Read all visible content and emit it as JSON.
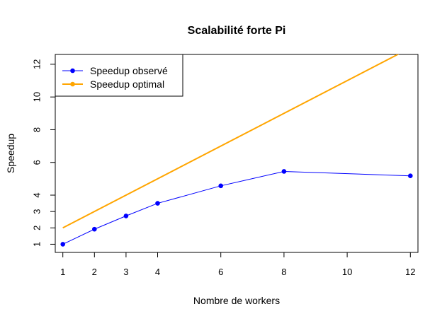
{
  "chart_data": {
    "type": "line",
    "title": "Scalabilité forte Pi",
    "xlabel": "Nombre de workers",
    "ylabel": "Speedup",
    "xlim": [
      0.76,
      12.24
    ],
    "ylim": [
      0.5,
      12.6
    ],
    "x_ticks": [
      1,
      2,
      3,
      4,
      6,
      8,
      10,
      12
    ],
    "y_ticks": [
      1,
      2,
      3,
      4,
      6,
      8,
      10,
      12
    ],
    "grid": false,
    "legend_position": "top-left",
    "series": [
      {
        "name": "Speedup observé",
        "color": "#0000FF",
        "marker": "circle",
        "x": [
          1,
          2,
          3,
          4,
          6,
          8,
          12
        ],
        "y": [
          1.0,
          1.92,
          2.73,
          3.5,
          4.57,
          5.45,
          5.18
        ]
      },
      {
        "name": "Speedup optimal",
        "color": "#FFA500",
        "marker": "none",
        "x": [
          1,
          12
        ],
        "y": [
          2,
          13
        ]
      }
    ]
  }
}
